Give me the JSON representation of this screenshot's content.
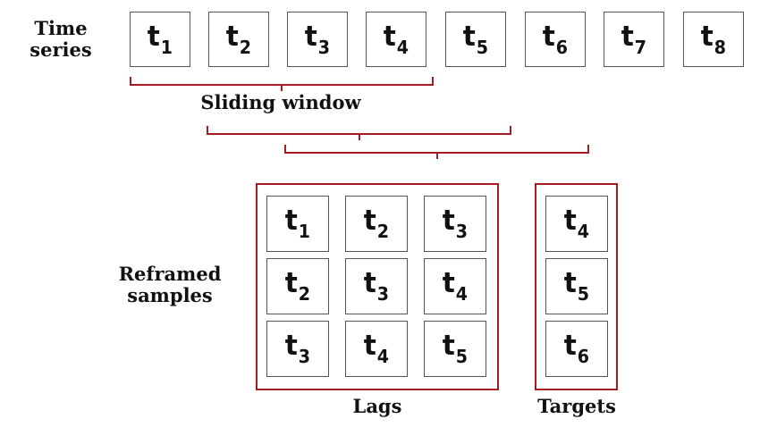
{
  "colors": {
    "accent": "#a31e22",
    "box_border": "#555555",
    "text": "#111111"
  },
  "time_series": {
    "label_line1": "Time",
    "label_line2": "series",
    "items": [
      {
        "base": "t",
        "sub": "1"
      },
      {
        "base": "t",
        "sub": "2"
      },
      {
        "base": "t",
        "sub": "3"
      },
      {
        "base": "t",
        "sub": "4"
      },
      {
        "base": "t",
        "sub": "5"
      },
      {
        "base": "t",
        "sub": "6"
      },
      {
        "base": "t",
        "sub": "7"
      },
      {
        "base": "t",
        "sub": "8"
      }
    ]
  },
  "sliding_window": {
    "label": "Sliding window"
  },
  "reframed": {
    "label_line1": "Reframed",
    "label_line2": "samples",
    "lags": [
      [
        {
          "base": "t",
          "sub": "1"
        },
        {
          "base": "t",
          "sub": "2"
        },
        {
          "base": "t",
          "sub": "3"
        }
      ],
      [
        {
          "base": "t",
          "sub": "2"
        },
        {
          "base": "t",
          "sub": "3"
        },
        {
          "base": "t",
          "sub": "4"
        }
      ],
      [
        {
          "base": "t",
          "sub": "3"
        },
        {
          "base": "t",
          "sub": "4"
        },
        {
          "base": "t",
          "sub": "5"
        }
      ]
    ],
    "targets": [
      {
        "base": "t",
        "sub": "4"
      },
      {
        "base": "t",
        "sub": "5"
      },
      {
        "base": "t",
        "sub": "6"
      }
    ],
    "lags_label": "Lags",
    "targets_label": "Targets"
  }
}
